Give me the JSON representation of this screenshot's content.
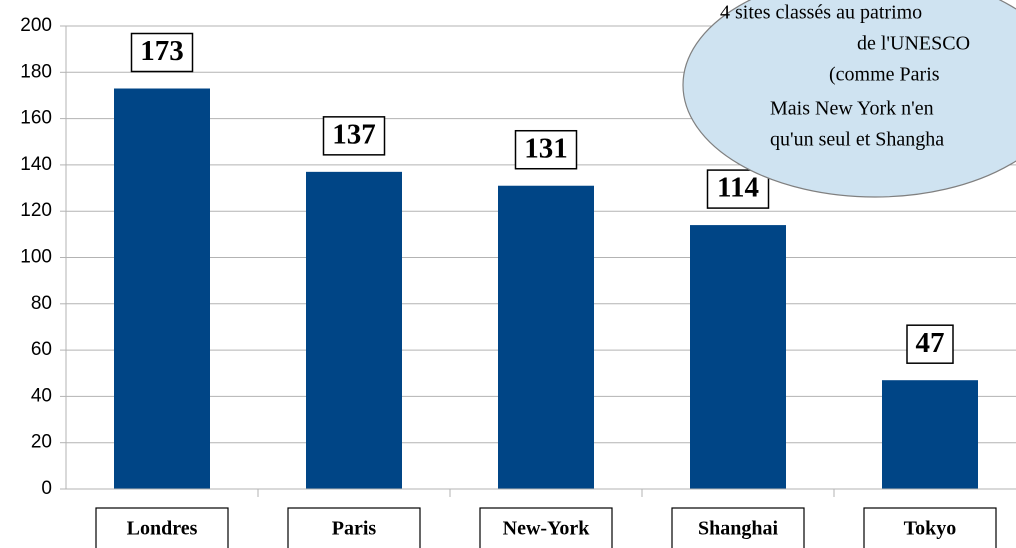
{
  "chart_data": {
    "type": "bar",
    "categories": [
      "Londres",
      "Paris",
      "New-York",
      "Shanghai",
      "Tokyo"
    ],
    "values": [
      173,
      137,
      131,
      114,
      47
    ],
    "color": "#004586",
    "ylim": [
      0,
      200
    ],
    "yticks": [
      0,
      20,
      40,
      60,
      80,
      100,
      120,
      140,
      160,
      180,
      200
    ],
    "grid": true,
    "annotation": [
      "4 sites classés au patrimo",
      "de l'UNESCO",
      "(comme Paris",
      "Mais New York n'en",
      "qu'un seul et Shangha"
    ]
  }
}
